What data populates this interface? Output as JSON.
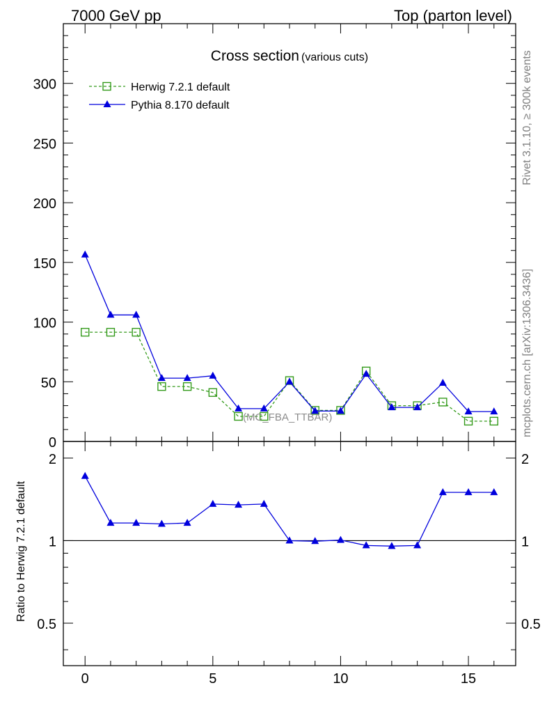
{
  "header": {
    "left": "7000 GeV pp",
    "right": "Top (parton level)"
  },
  "side_labels": {
    "rivet": "Rivet 3.1.10, ≥ 300k events",
    "mcplots": "mcplots.cern.ch [arXiv:1306.3436]"
  },
  "watermark": "(MC_FBA_TTBAR)",
  "colors": {
    "herwig": "#339a1a",
    "pythia": "#0000dd",
    "axis": "#000000",
    "side_text": "#808080"
  },
  "chart_data": [
    {
      "type": "line",
      "title": "Cross section",
      "subtitle": "(various cuts)",
      "xlabel": "",
      "ylabel": "",
      "xlim": [
        -0.85,
        16.85
      ],
      "ylim": [
        0,
        350
      ],
      "yticks": [
        0,
        50,
        100,
        150,
        200,
        250,
        300
      ],
      "legend_position": "top-left",
      "x": [
        0,
        1,
        2,
        3,
        4,
        5,
        6,
        7,
        8,
        9,
        10,
        11,
        12,
        13,
        14,
        15,
        16
      ],
      "series": [
        {
          "name": "Herwig 7.2.1 default",
          "marker": "open-square",
          "line": "dashed",
          "values": [
            91.5,
            91.5,
            91.5,
            46,
            46,
            41,
            21,
            21,
            51,
            26,
            26,
            59,
            30,
            30,
            33,
            17,
            17
          ]
        },
        {
          "name": "Pythia 8.170 default",
          "marker": "filled-triangle",
          "line": "solid",
          "values": [
            156.5,
            106,
            106,
            53,
            53,
            55,
            27.5,
            27.5,
            50,
            25.5,
            25.5,
            56.5,
            28.5,
            28.5,
            49,
            25,
            25
          ]
        }
      ]
    },
    {
      "type": "line",
      "title": "",
      "ylabel": "Ratio to Herwig 7.2.1 default",
      "xlim": [
        -0.85,
        16.85
      ],
      "ylim": [
        0.35,
        2.3
      ],
      "yticks": [
        0.5,
        1,
        2
      ],
      "xticks": [
        0,
        5,
        10,
        15
      ],
      "reference_line": 1,
      "x": [
        0,
        1,
        2,
        3,
        4,
        5,
        6,
        7,
        8,
        9,
        10,
        11,
        12,
        13,
        14,
        15,
        16
      ],
      "series": [
        {
          "name": "Pythia 8.170 default",
          "marker": "filled-triangle",
          "line": "solid",
          "values": [
            1.72,
            1.16,
            1.16,
            1.15,
            1.16,
            1.36,
            1.35,
            1.36,
            1.0,
            0.995,
            1.005,
            0.96,
            0.955,
            0.96,
            1.5,
            1.5,
            1.5
          ]
        }
      ]
    }
  ]
}
